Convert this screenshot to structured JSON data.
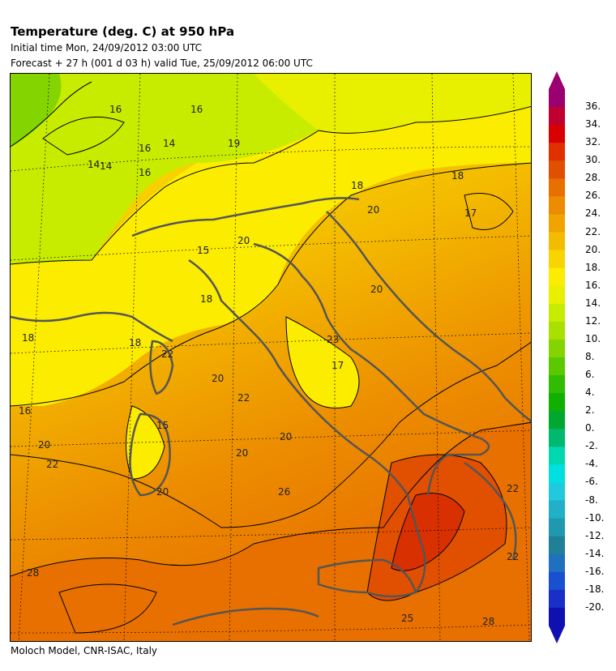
{
  "header": {
    "title": "Temperature (deg. C) at 950 hPa",
    "initial_time": "Initial time  Mon, 24/09/2012  03:00 UTC",
    "forecast": "Forecast  +  27 h  (001 d 03 h)  valid Tue, 25/09/2012 06:00 UTC"
  },
  "footer": "Moloch Model, CNR-ISAC, Italy",
  "legend": {
    "labels": [
      "36.",
      "34.",
      "32.",
      "30.",
      "28.",
      "26.",
      "24.",
      "22.",
      "20.",
      "18.",
      "16.",
      "14.",
      "12.",
      "10.",
      "8.",
      "6.",
      "4.",
      "2.",
      "0.",
      "-2.",
      "-4.",
      "-6.",
      "-8.",
      "-10.",
      "-12.",
      "-14.",
      "-16.",
      "-18.",
      "-20."
    ],
    "colors": [
      "#9a0070",
      "#c00030",
      "#d80000",
      "#e03000",
      "#e05000",
      "#e87000",
      "#ec8c00",
      "#f0a400",
      "#f4bc00",
      "#f8d400",
      "#fcec00",
      "#e8f000",
      "#c8ec00",
      "#a8e000",
      "#84d400",
      "#5cc800",
      "#30bc00",
      "#10b000",
      "#00a830",
      "#00b870",
      "#00d8b0",
      "#00e0e0",
      "#20c8e0",
      "#20b0c8",
      "#2098b0",
      "#208098",
      "#2070c0",
      "#1850d0",
      "#1830c8",
      "#1010b0"
    ]
  },
  "contour_labels": [
    "16",
    "16",
    "14",
    "16",
    "14",
    "19",
    "14",
    "16",
    "18",
    "17",
    "18",
    "20",
    "15",
    "20",
    "20",
    "18",
    "16",
    "18",
    "23",
    "17",
    "18",
    "22",
    "20",
    "22",
    "20",
    "15",
    "20",
    "20",
    "22",
    "20",
    "22",
    "22",
    "28",
    "25",
    "28",
    "26"
  ],
  "colors": {
    "land_border": "#555555",
    "contour": "#000000",
    "grid": "#000000"
  }
}
